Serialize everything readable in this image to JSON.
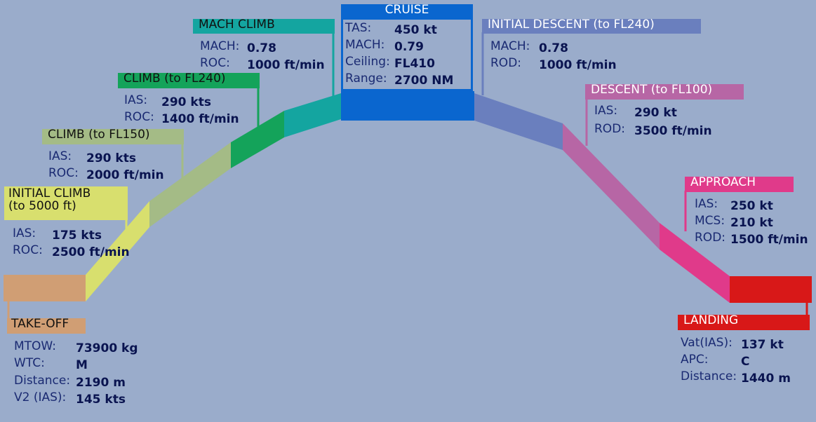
{
  "colors": {
    "background": "#9aaccb",
    "takeoff": "#d09e74",
    "initial_climb": "#d8df6e",
    "climb_fl150": "#a4bb86",
    "climb_fl240": "#14a35a",
    "mach_climb": "#14a5a0",
    "cruise": "#0a66cf",
    "initial_descent": "#6a7fbe",
    "descent_fl100": "#b766a5",
    "approach": "#e03a8a",
    "landing": "#d81818"
  },
  "phases": {
    "takeoff": {
      "title": "TAKE-OFF",
      "rows": [
        {
          "label": "MTOW:",
          "value": "73900 kg"
        },
        {
          "label": "WTC:",
          "value": "M"
        },
        {
          "label": "Distance:",
          "value": "2190 m"
        },
        {
          "label": "V2 (IAS):",
          "value": "145 kts"
        }
      ]
    },
    "initial_climb": {
      "title_line1": "INITIAL CLIMB",
      "title_line2": "(to 5000 ft)",
      "rows": [
        {
          "label": "IAS:",
          "value": "175 kts"
        },
        {
          "label": "ROC:",
          "value": "2500 ft/min"
        }
      ]
    },
    "climb_fl150": {
      "title": "CLIMB (to FL150)",
      "rows": [
        {
          "label": "IAS:",
          "value": "290 kts"
        },
        {
          "label": "ROC:",
          "value": "2000 ft/min"
        }
      ]
    },
    "climb_fl240": {
      "title": "CLIMB (to FL240)",
      "rows": [
        {
          "label": "IAS:",
          "value": "290 kts"
        },
        {
          "label": "ROC:",
          "value": "1400 ft/min"
        }
      ]
    },
    "mach_climb": {
      "title": "MACH CLIMB",
      "rows": [
        {
          "label": "MACH:",
          "value": "0.78"
        },
        {
          "label": "ROC:",
          "value": "1000 ft/min"
        }
      ]
    },
    "cruise": {
      "title": "CRUISE",
      "rows": [
        {
          "label": "TAS:",
          "value": "450 kt"
        },
        {
          "label": "MACH:",
          "value": "0.79"
        },
        {
          "label": "Ceiling:",
          "value": "FL410"
        },
        {
          "label": "Range:",
          "value": "2700 NM"
        }
      ]
    },
    "initial_descent": {
      "title": "INITIAL DESCENT (to FL240)",
      "rows": [
        {
          "label": "MACH:",
          "value": "0.78"
        },
        {
          "label": "ROD:",
          "value": "1000 ft/min"
        }
      ]
    },
    "descent_fl100": {
      "title": "DESCENT (to FL100)",
      "rows": [
        {
          "label": "IAS:",
          "value": "290 kt"
        },
        {
          "label": "ROD:",
          "value": "3500 ft/min"
        }
      ]
    },
    "approach": {
      "title": "APPROACH",
      "rows": [
        {
          "label": "IAS:",
          "value": "250 kt"
        },
        {
          "label": "MCS:",
          "value": "210 kt"
        },
        {
          "label": "ROD:",
          "value": "1500 ft/min"
        }
      ]
    },
    "landing": {
      "title": "LANDING",
      "rows": [
        {
          "label": "Vat(IAS):",
          "value": "137 kt"
        },
        {
          "label": "APC:",
          "value": "C"
        },
        {
          "label": "Distance:",
          "value": "1440 m"
        }
      ]
    }
  }
}
